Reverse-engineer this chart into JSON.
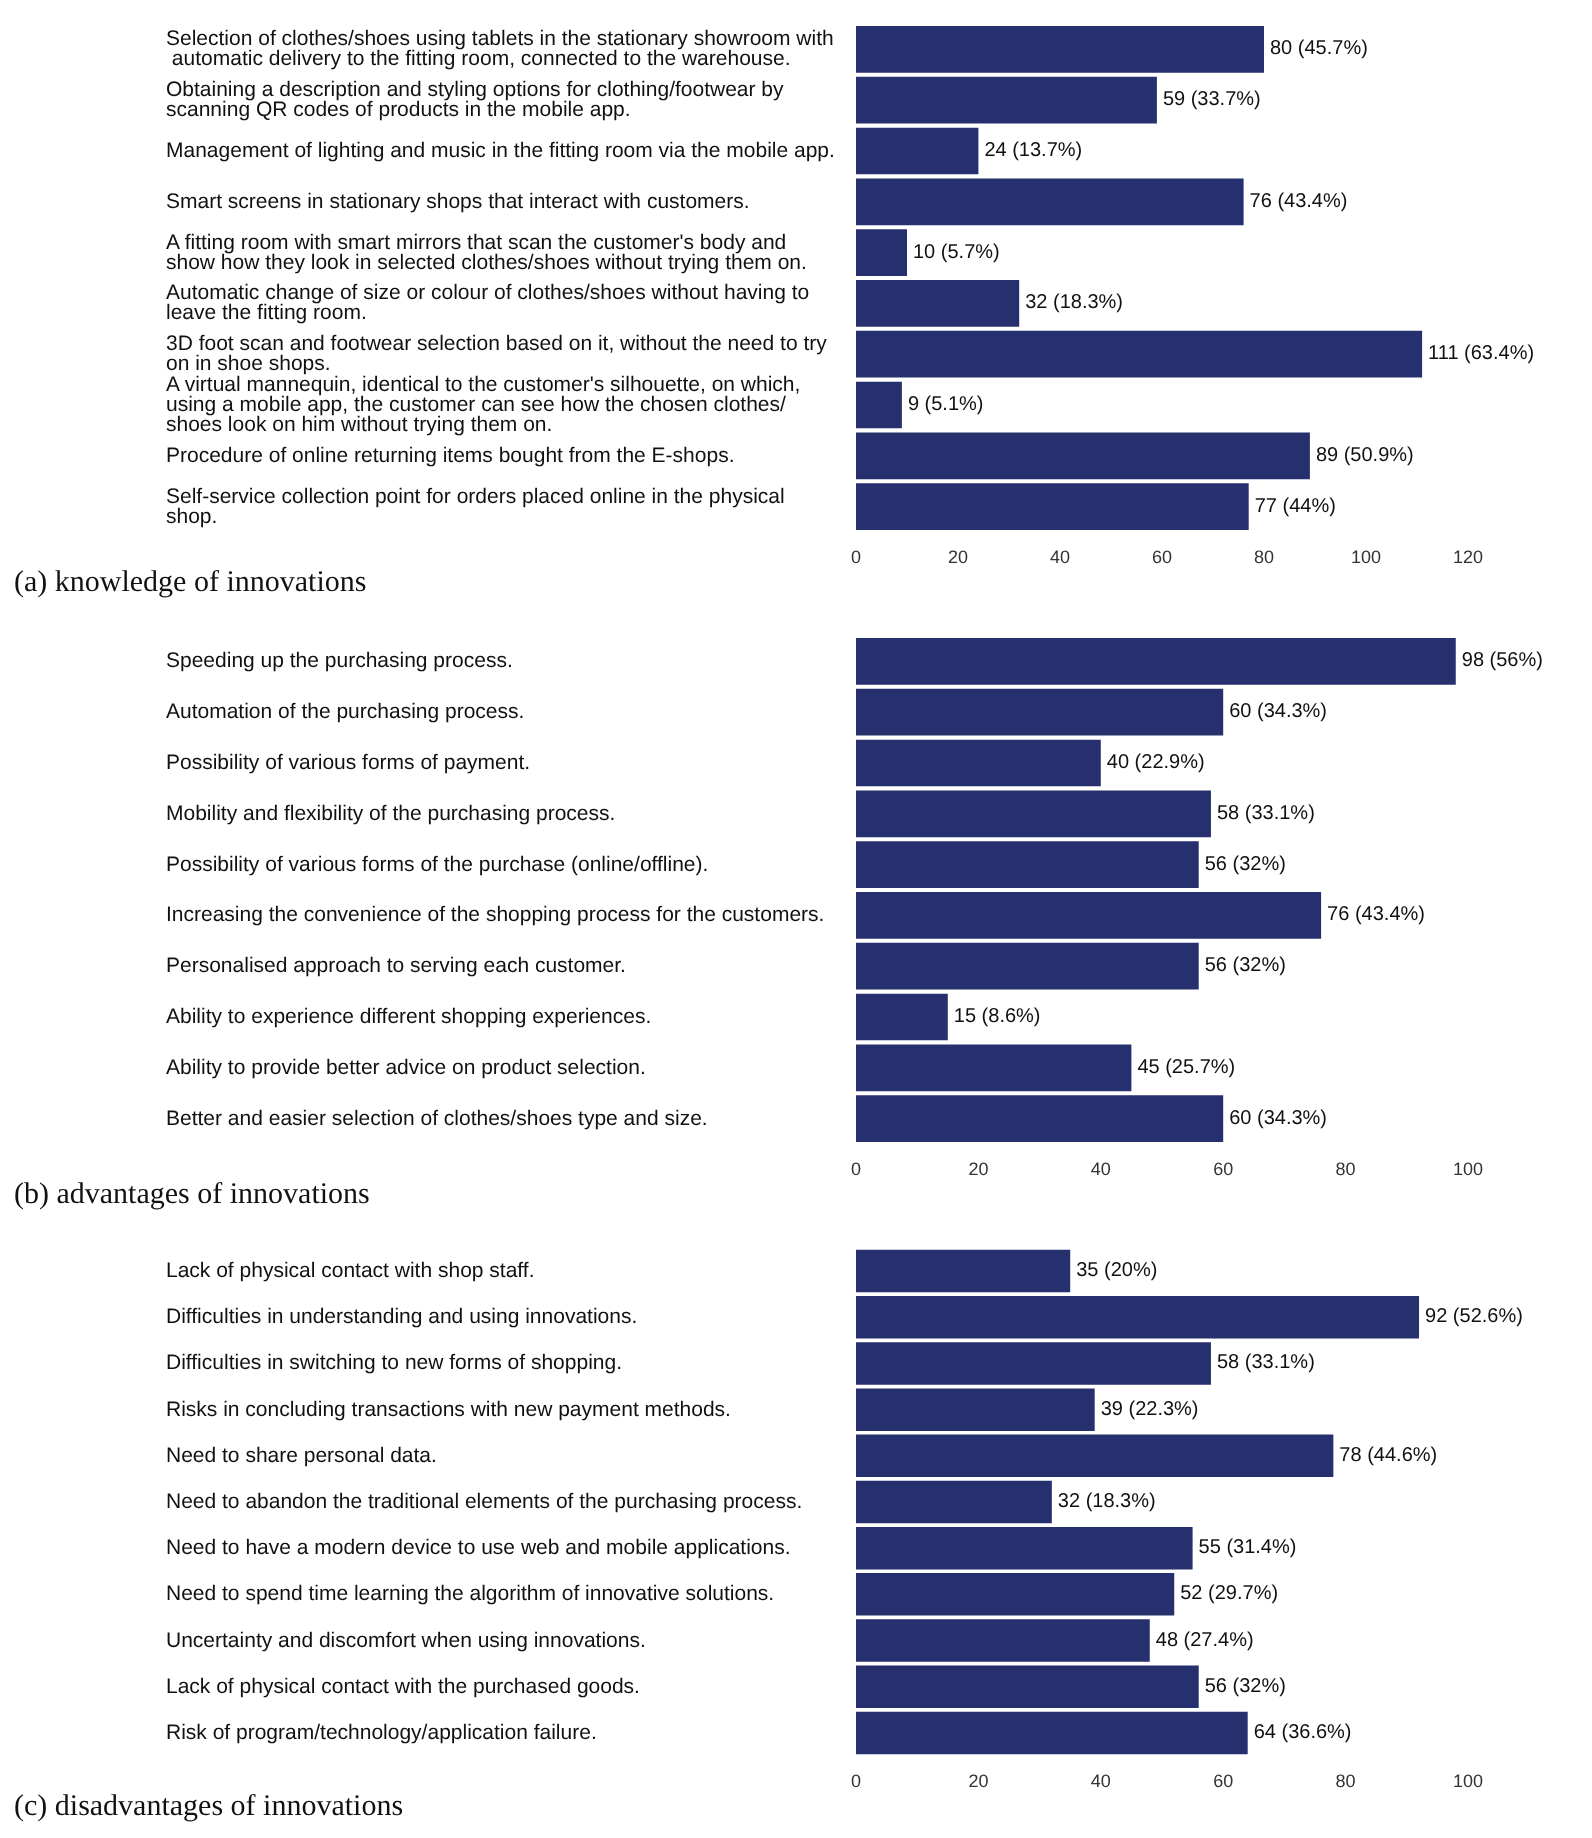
{
  "chart_data": [
    {
      "type": "bar",
      "orientation": "horizontal",
      "title": "(a) knowledge of innovations",
      "color": "#27306f",
      "grid": false,
      "categories": [
        "Selection of clothes/shoes using tablets in the stationary showroom with automatic delivery to the fitting room, connected to the warehouse.",
        "Obtaining a description and styling options for clothing/footwear by scanning QR codes of products in the mobile app.",
        "Management of lighting and music in the fitting room via the mobile app.",
        "Smart screens in stationary shops that interact with customers.",
        "A fitting room with smart mirrors that scan the customer's body and show how they look in selected clothes/shoes without trying them on.",
        "Automatic change of size or colour of clothes/shoes without having to leave the fitting room.",
        "3D foot scan and footwear selection based on it, without the need to try on in shoe shops.",
        "A virtual mannequin, identical to the customer's silhouette, on which, using a mobile app, the customer can see how the chosen clothes/shoes look on him without trying them on.",
        "Procedure of online returning items bought from the E-shops.",
        "Self-service collection point for orders placed online in the physical shop."
      ],
      "values": [
        80,
        59,
        24,
        76,
        10,
        32,
        111,
        9,
        89,
        77
      ],
      "value_labels": [
        "80 (45.7%)",
        "59 (33.7%)",
        "24 (13.7%)",
        "76 (43.4%)",
        "10 (5.7%)",
        "32 (18.3%)",
        "111 (63.4%)",
        "9 (5.1%)",
        "89 (50.9%)",
        "77 (44%)"
      ],
      "xlim": [
        0,
        120
      ],
      "xticks": [
        0,
        20,
        40,
        60,
        80,
        100,
        120
      ]
    },
    {
      "type": "bar",
      "orientation": "horizontal",
      "title": "(b) advantages of innovations",
      "color": "#27306f",
      "grid": false,
      "categories": [
        "Speeding up the purchasing process.",
        "Automation of the purchasing process.",
        "Possibility of various forms of payment.",
        "Mobility and flexibility of the purchasing process.",
        "Possibility of various forms of the purchase (online/offline).",
        "Increasing the convenience of the shopping process for the customers.",
        "Personalised approach to serving each customer.",
        "Ability to experience different shopping experiences.",
        "Ability to provide better advice on product selection.",
        "Better and easier selection of clothes/shoes type and size."
      ],
      "values": [
        98,
        60,
        40,
        58,
        56,
        76,
        56,
        15,
        45,
        60
      ],
      "value_labels": [
        "98 (56%)",
        "60 (34.3%)",
        "40 (22.9%)",
        "58 (33.1%)",
        "56 (32%)",
        "76 (43.4%)",
        "56 (32%)",
        "15 (8.6%)",
        "45 (25.7%)",
        "60 (34.3%)"
      ],
      "xlim": [
        0,
        100
      ],
      "xticks": [
        0,
        20,
        40,
        60,
        80,
        100
      ]
    },
    {
      "type": "bar",
      "orientation": "horizontal",
      "title": "(c) disadvantages of innovations",
      "color": "#27306f",
      "grid": false,
      "categories": [
        "Lack of physical contact with shop staff.",
        "Difficulties in understanding and using innovations.",
        "Difficulties in switching to new forms of shopping.",
        "Risks in concluding transactions with new payment methods.",
        "Need to share personal data.",
        "Need to abandon the traditional elements of the purchasing process.",
        "Need to have a modern device to use web and mobile applications.",
        "Need to spend time learning the algorithm of innovative solutions.",
        "Uncertainty and discomfort when using innovations.",
        "Lack of physical contact with the purchased goods.",
        "Risk of program/technology/application failure."
      ],
      "values": [
        35,
        92,
        58,
        39,
        78,
        32,
        55,
        52,
        48,
        56,
        64
      ],
      "value_labels": [
        "35 (20%)",
        "92 (52.6%)",
        "58 (33.1%)",
        "39 (22.3%)",
        "78 (44.6%)",
        "32 (18.3%)",
        "55 (31.4%)",
        "52 (29.7%)",
        "48 (27.4%)",
        "56 (32%)",
        "64 (36.6%)"
      ],
      "xlim": [
        0,
        100
      ],
      "xticks": [
        0,
        20,
        40,
        60,
        80,
        100
      ]
    }
  ]
}
